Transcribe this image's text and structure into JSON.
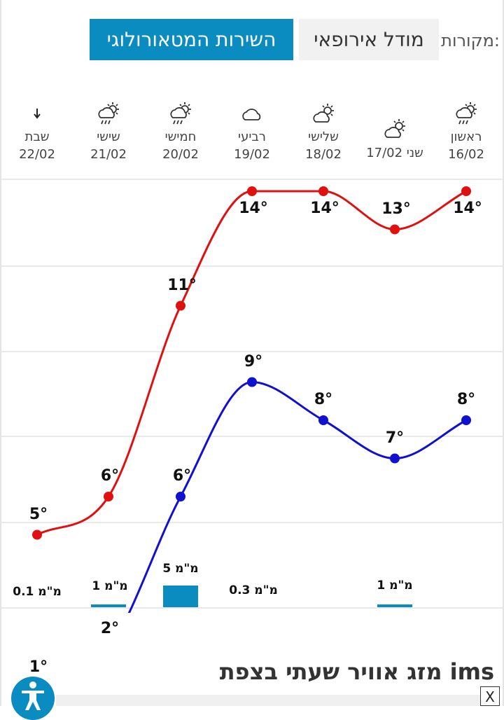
{
  "sources": {
    "label": "מקורות:",
    "model_button": "מודל אירופאי",
    "ims_button": "השירות המטאורולוגי"
  },
  "days": [
    {
      "name": "ראשון",
      "date": "16/02",
      "icon": "rain-cloud-sun-icon"
    },
    {
      "name": "שני",
      "date": "17/02",
      "icon": "partly-cloudy-icon"
    },
    {
      "name": "שלישי",
      "date": "18/02",
      "icon": "partly-cloudy-icon"
    },
    {
      "name": "רביעי",
      "date": "19/02",
      "icon": "cloud-icon"
    },
    {
      "name": "חמישי",
      "date": "20/02",
      "icon": "rain-cloud-sun-icon"
    },
    {
      "name": "שישי",
      "date": "21/02",
      "icon": "rain-cloud-sun-icon"
    },
    {
      "name": "שבת",
      "date": "22/02",
      "icon": "arrow-down-icon"
    }
  ],
  "chart_data": {
    "type": "line",
    "x": [
      "16/02",
      "17/02",
      "18/02",
      "19/02",
      "20/02",
      "21/02",
      "22/02"
    ],
    "series": [
      {
        "values": [
          14,
          13,
          14,
          14,
          11,
          6,
          5
        ],
        "color": "#e01010"
      },
      {
        "values": [
          8,
          7,
          8,
          9,
          6,
          2,
          1
        ],
        "color": "#1010d0"
      }
    ],
    "temp_labels_max": [
      "14°",
      "13°",
      "14°",
      "14°",
      "11°",
      "6°",
      "5°"
    ],
    "temp_labels_min": [
      "8°",
      "7°",
      "8°",
      "9°",
      "6°",
      "2°",
      "1°"
    ],
    "rain": [
      {
        "day": "17/02",
        "label": "1 מ\"מ",
        "mm": 1
      },
      {
        "day": "19/02",
        "label": "0.3 מ\"מ",
        "mm": 0.3
      },
      {
        "day": "20/02",
        "label": "5 מ\"מ",
        "mm": 5
      },
      {
        "day": "21/02",
        "label": "1 מ\"מ",
        "mm": 1
      },
      {
        "day": "22/02",
        "label": "0.1 מ\"מ",
        "mm": 0.1
      }
    ],
    "grid": true
  },
  "footer": {
    "title": "מזג אוויר שעתי בצפת ims",
    "close": "X"
  },
  "colors": {
    "accent": "#0a8cc0",
    "max_line": "#e01010",
    "min_line": "#1010d0"
  }
}
